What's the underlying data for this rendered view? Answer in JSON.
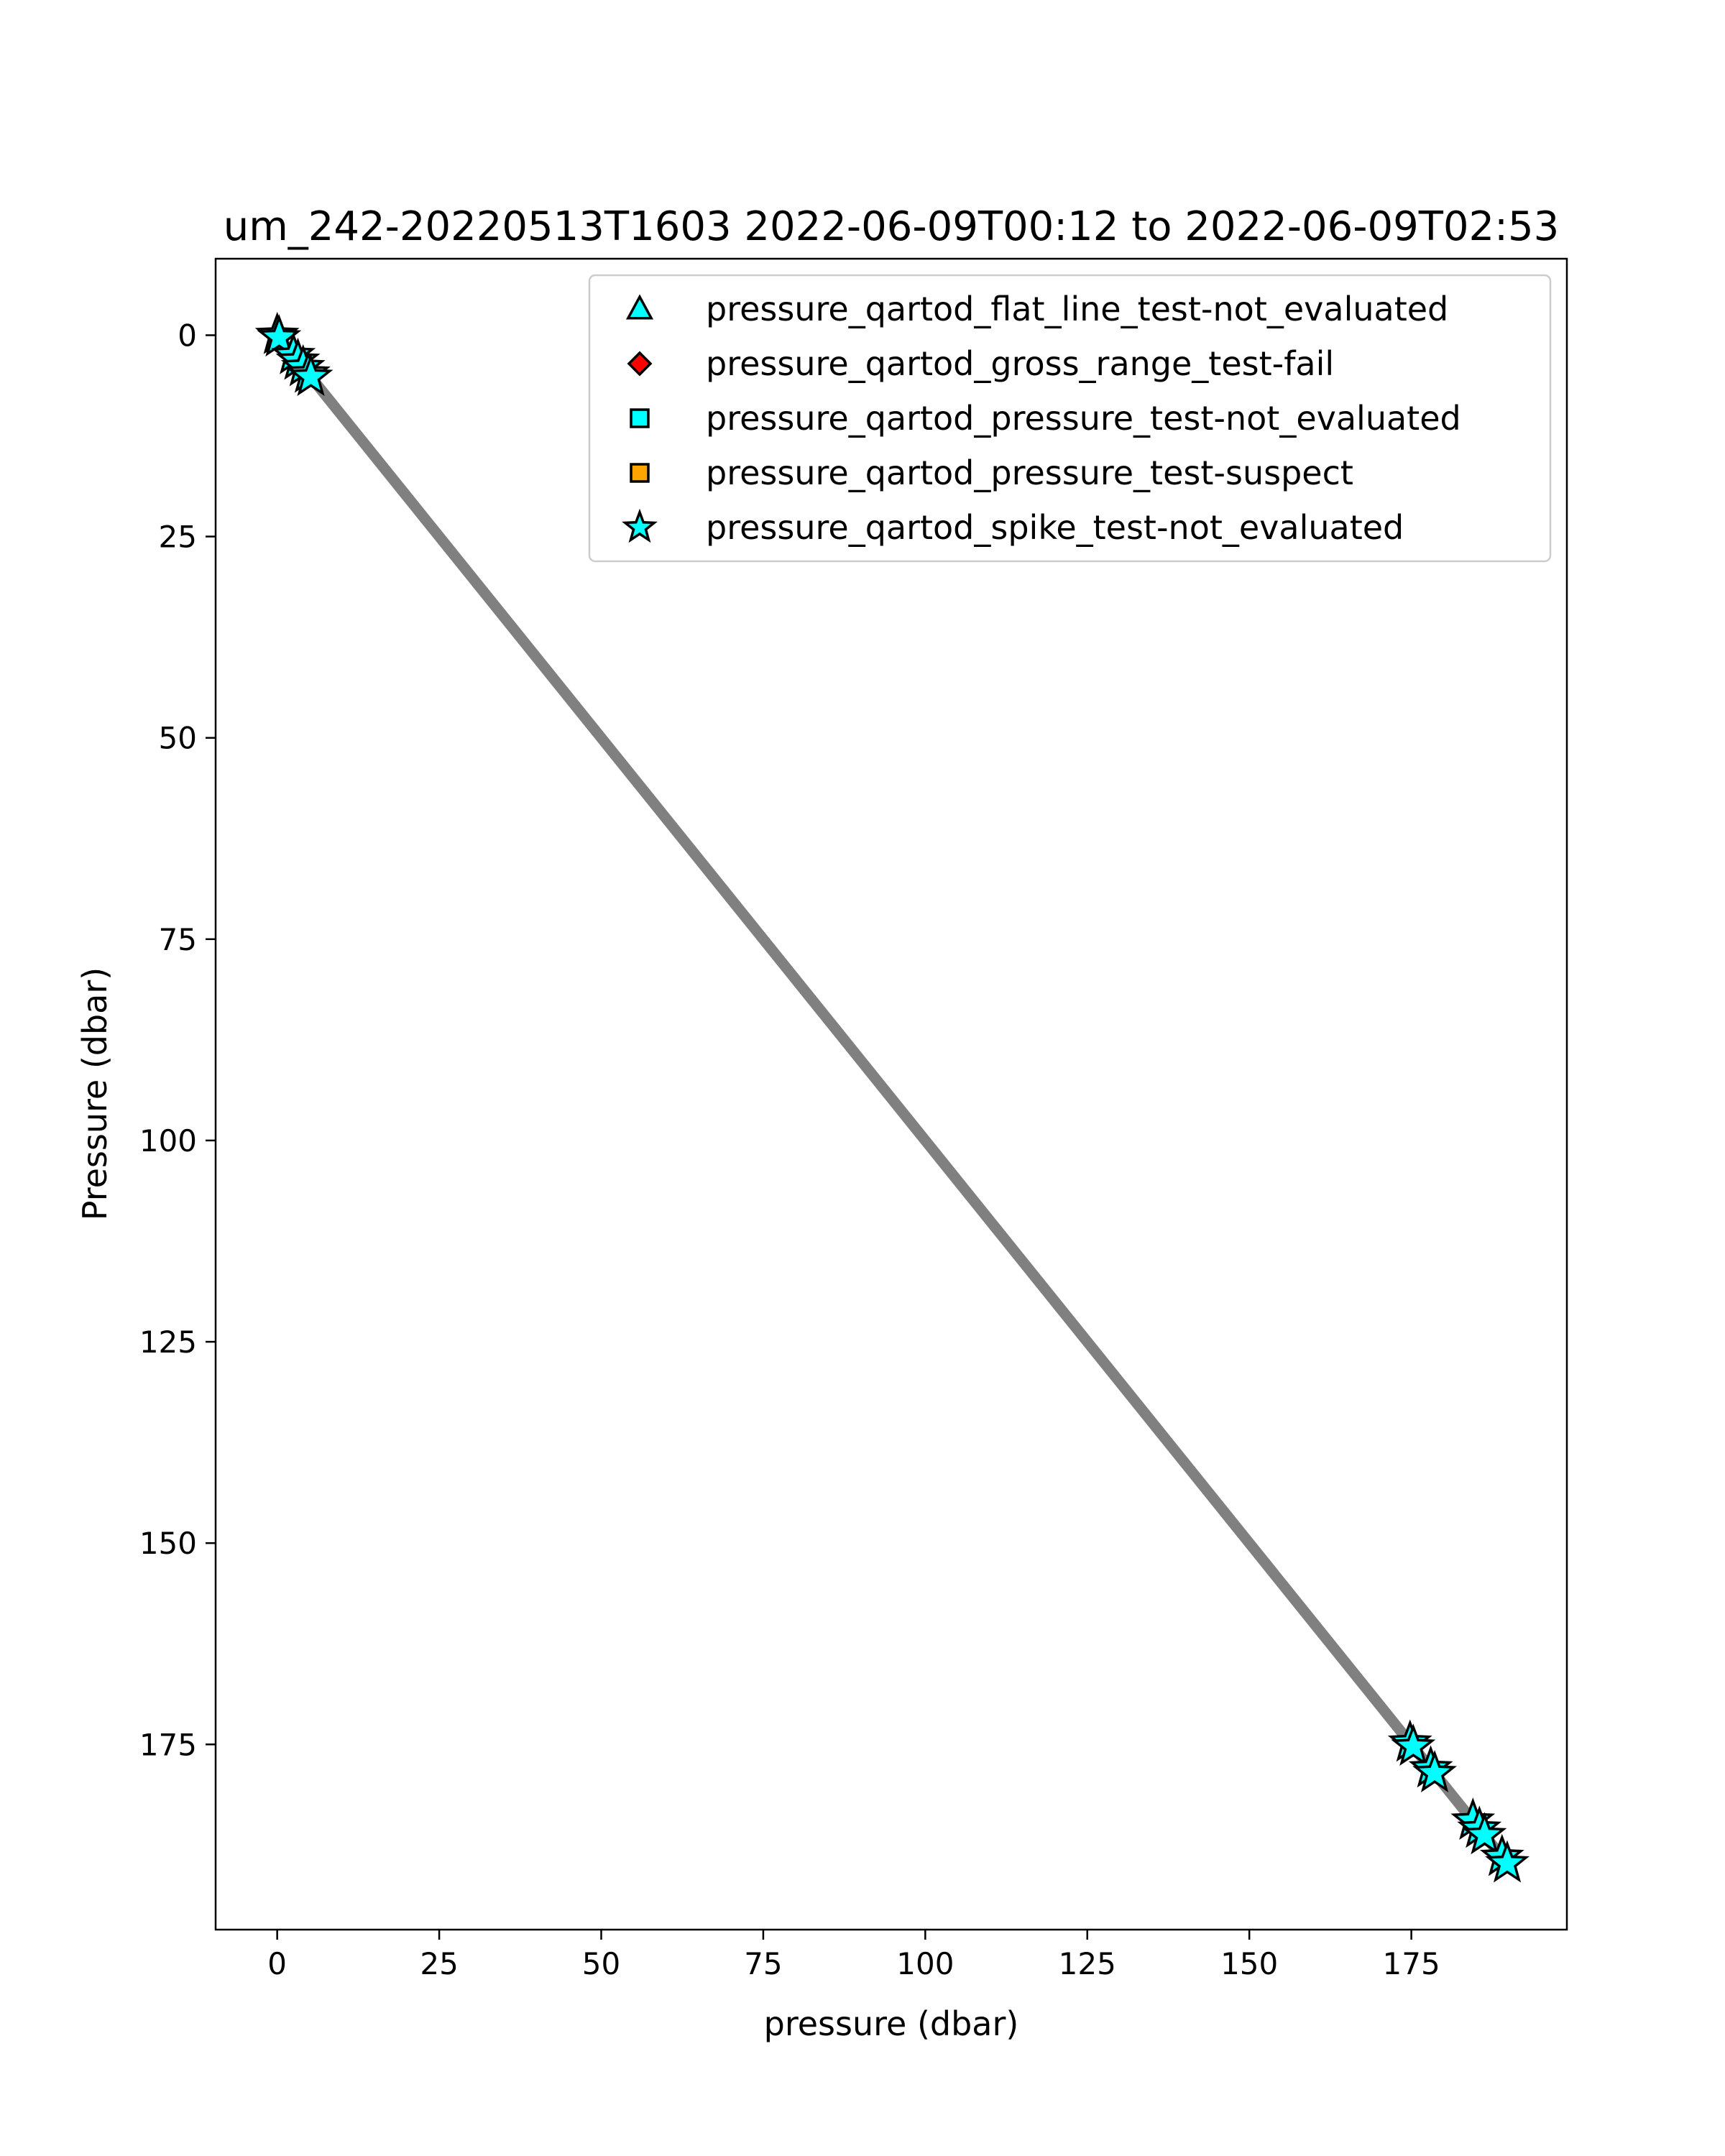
{
  "chart_data": {
    "type": "scatter",
    "title": "um_242-20220513T1603 2022-06-09T00:12 to 2022-06-09T02:53",
    "xlabel": "pressure (dbar)",
    "ylabel": "Pressure (dbar)",
    "xlim": [
      -9.5,
      199.0
    ],
    "ylim": [
      198.0,
      -9.5
    ],
    "y_inverted": true,
    "grid": false,
    "legend_position": "upper-right",
    "xticks": [
      "0",
      "25",
      "50",
      "75",
      "100",
      "125",
      "150",
      "175"
    ],
    "yticks": [
      "0",
      "25",
      "50",
      "75",
      "100",
      "125",
      "150",
      "175"
    ],
    "base_series": {
      "color": "#808080",
      "x_start": 0,
      "x_end": 190,
      "note_relation": "y equals x"
    },
    "legend": [
      {
        "label": "pressure_qartod_flat_line_test-not_evaluated",
        "marker": "triangle",
        "color": "#00ffff"
      },
      {
        "label": "pressure_qartod_gross_range_test-fail",
        "marker": "diamond",
        "color": "#ff0000"
      },
      {
        "label": "pressure_qartod_pressure_test-not_evaluated",
        "marker": "square",
        "color": "#00ffff"
      },
      {
        "label": "pressure_qartod_pressure_test-suspect",
        "marker": "square",
        "color": "#ffa500"
      },
      {
        "label": "pressure_qartod_spike_test-not_evaluated",
        "marker": "star",
        "color": "#00ffff"
      }
    ],
    "flagged_points": [
      {
        "x": 0.0,
        "y": 0.0
      },
      {
        "x": 0.3,
        "y": 0.3
      },
      {
        "x": 2.5,
        "y": 2.5
      },
      {
        "x": 3.2,
        "y": 3.2
      },
      {
        "x": 4.0,
        "y": 4.0
      },
      {
        "x": 4.8,
        "y": 4.8
      },
      {
        "x": 5.2,
        "y": 5.2
      },
      {
        "x": 174.8,
        "y": 174.8
      },
      {
        "x": 175.3,
        "y": 175.3
      },
      {
        "x": 178.0,
        "y": 178.0
      },
      {
        "x": 178.6,
        "y": 178.6
      },
      {
        "x": 184.5,
        "y": 184.5
      },
      {
        "x": 185.5,
        "y": 185.5
      },
      {
        "x": 186.3,
        "y": 186.3
      },
      {
        "x": 189.0,
        "y": 189.0
      },
      {
        "x": 189.8,
        "y": 189.8
      }
    ]
  }
}
